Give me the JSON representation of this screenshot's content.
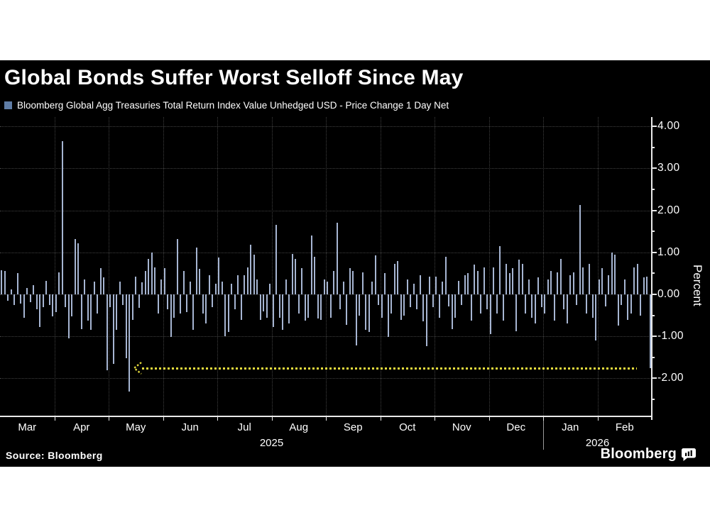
{
  "page": {
    "background": "#ffffff",
    "card_background": "#000000"
  },
  "header": {
    "title": "Global Bonds Suffer Worst Selloff Since May",
    "legend": {
      "marker_color": "#5f7da6",
      "label": "Bloomberg Global Agg Treasuries Total Return Index Value Unhedged USD - Price Change 1 Day Net"
    }
  },
  "chart_data": {
    "type": "bar",
    "title": "Global Bonds Suffer Worst Selloff Since May",
    "series_name": "Bloomberg Global Agg Treasuries Total Return Index Value Unhedged USD - Price Change 1 Day Net",
    "ylabel": "Percent",
    "ylim": [
      -2.9,
      4.25
    ],
    "yticks": [
      4,
      3,
      2,
      1,
      0,
      -1,
      -2
    ],
    "ytick_labels": [
      "4.00",
      "3.00",
      "2.00",
      "1.00",
      "0.00",
      "-1.00",
      "-2.00"
    ],
    "minor_yticks": [
      3.5,
      2.5,
      1.5,
      0.5,
      -0.5,
      -1.5,
      -2.5
    ],
    "grid": "dotted",
    "bar_color": "#a6b5d2",
    "x_months": [
      {
        "label": "Mar",
        "values": [
          0.58,
          0.55,
          -0.15,
          0.12,
          -0.25,
          0.5,
          -0.22,
          -0.55,
          0.15,
          -0.18,
          0.22,
          -0.35,
          -0.78,
          -0.3,
          0.32,
          -0.25,
          -0.52
        ]
      },
      {
        "label": "Apr",
        "values": [
          -0.42,
          0.52,
          3.65,
          -0.3,
          -1.05,
          -0.52,
          1.32,
          1.22,
          -0.82,
          0.35,
          -0.62,
          -0.85,
          0.3,
          -0.45,
          0.62,
          0.4,
          -1.8
        ]
      },
      {
        "label": "May",
        "values": [
          -0.3,
          -1.65,
          -0.85,
          0.3,
          -0.25,
          -1.52,
          -2.32,
          -0.6,
          0.42,
          -0.32,
          0.28,
          0.55,
          0.85,
          1.0,
          0.65,
          -0.45,
          0.35
        ]
      },
      {
        "label": "Jun",
        "values": [
          0.62,
          -0.35,
          -1.02,
          -0.55,
          1.32,
          -0.45,
          0.55,
          -0.42,
          0.3,
          -0.85,
          1.12,
          0.6,
          -0.45,
          -0.7,
          0.45,
          -0.3,
          0.25
        ]
      },
      {
        "label": "Jul",
        "values": [
          0.88,
          0.3,
          -1.0,
          -0.9,
          0.25,
          -0.35,
          0.45,
          -0.6,
          0.45,
          0.65,
          1.18,
          0.95,
          0.35,
          -0.6,
          -0.4,
          -0.55,
          0.25
        ]
      },
      {
        "label": "Aug",
        "values": [
          -0.78,
          1.65,
          -0.55,
          -0.85,
          0.35,
          -0.7,
          0.96,
          0.85,
          -0.45,
          0.62,
          -0.62,
          -0.55,
          1.4,
          0.9,
          -0.58,
          -0.6,
          0.35
        ]
      },
      {
        "label": "Sep",
        "values": [
          0.3,
          -0.55,
          0.55,
          1.7,
          -0.35,
          0.3,
          -0.72,
          0.62,
          0.55,
          -1.22,
          -0.5,
          0.52,
          -0.85,
          -0.9,
          0.3,
          0.93,
          -0.25
        ]
      },
      {
        "label": "Oct",
        "values": [
          -0.55,
          0.5,
          -1.02,
          -0.45,
          0.72,
          0.8,
          -0.6,
          -0.5,
          0.35,
          -0.3,
          0.25,
          -0.35,
          0.45,
          -0.65,
          -1.23,
          0.42,
          -0.3
        ]
      },
      {
        "label": "Nov",
        "values": [
          0.42,
          -0.55,
          0.3,
          0.9,
          -0.28,
          -0.82,
          -0.55,
          0.32,
          -0.25,
          0.45,
          0.5,
          -0.62,
          0.71,
          0.55,
          -0.45,
          0.65,
          -0.35
        ]
      },
      {
        "label": "Dec",
        "values": [
          -0.94,
          0.65,
          -0.45,
          1.15,
          -0.62,
          0.72,
          0.5,
          0.62,
          -0.88,
          0.82,
          0.72,
          -0.45,
          0.35,
          -0.55,
          -0.7,
          0.4,
          -0.3
        ]
      },
      {
        "label": "Jan",
        "values": [
          -0.45,
          0.35,
          0.55,
          -0.62,
          0.52,
          0.85,
          -0.35,
          -0.7,
          0.45,
          0.52,
          -0.25,
          2.12,
          0.65,
          -0.45,
          0.72,
          -0.55,
          -1.1
        ]
      },
      {
        "label": "Feb",
        "values": [
          0.35,
          0.62,
          -0.28,
          0.45,
          1.0,
          0.95,
          -0.75,
          -0.25,
          0.35,
          -0.6,
          -0.45,
          0.65,
          0.72,
          -0.5,
          0.4,
          0.42,
          -1.75
        ]
      }
    ],
    "year_labels": [
      {
        "label": "2025",
        "span_months": [
          "Mar",
          "Dec"
        ]
      },
      {
        "label": "2026",
        "span_months": [
          "Jan",
          "Feb"
        ]
      }
    ],
    "annotation": {
      "type": "horizontal-dotted-line",
      "value": -1.75,
      "color": "#e6dc3d",
      "x_start_frac": 0.218,
      "x_end_frac": 0.977,
      "left_end": "dotted-arrowhead"
    }
  },
  "footer": {
    "source": "Source: Bloomberg",
    "brand": "Bloomberg"
  }
}
